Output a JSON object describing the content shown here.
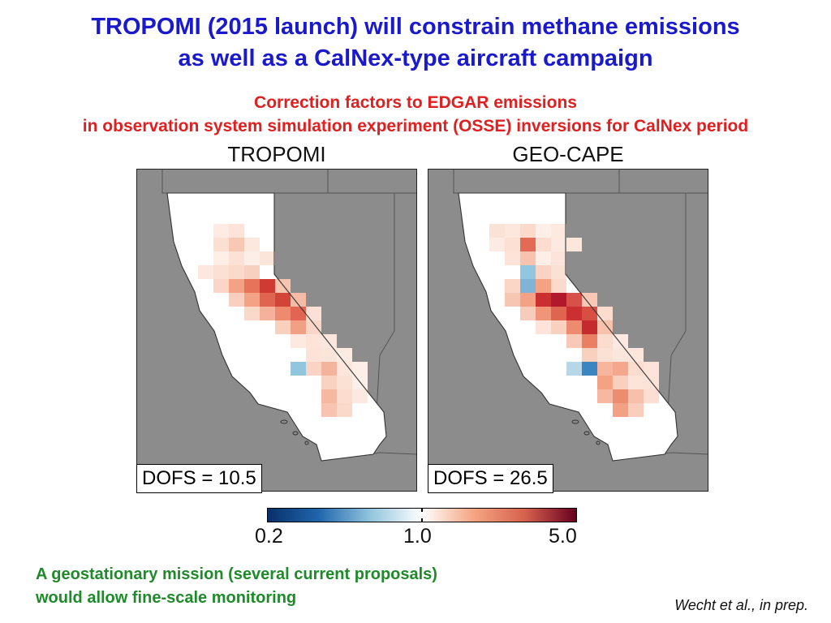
{
  "slide": {
    "title_line1": "TROPOMI (2015 launch) will constrain methane emissions",
    "title_line2": "as well as a CalNex-type aircraft campaign",
    "subtitle_line1": "Correction factors to EDGAR emissions",
    "subtitle_line2": "in observation system simulation experiment (OSSE) inversions for CalNex period",
    "note_line1": "A geostationary mission (several current proposals)",
    "note_line2": "would allow fine-scale monitoring",
    "citation": "Wecht et al., in prep."
  },
  "panels": [
    {
      "title": "TROPOMI",
      "dofs": "DOFS = 10.5"
    },
    {
      "title": "GEO-CAPE",
      "dofs": "DOFS = 26.5"
    }
  ],
  "colorbar": {
    "ticks": [
      "0.2",
      "1.0",
      "5.0"
    ],
    "colors": [
      "#08306b",
      "#2166ac",
      "#92c5de",
      "#ffffff",
      "#f4a582",
      "#d6604d",
      "#67001f"
    ]
  },
  "colors": {
    "title": "#1a1acc",
    "subtitle": "#e02020",
    "note": "#1f8a2a",
    "ocean_background": "#8c8c8c",
    "land": "#ffffff"
  }
}
